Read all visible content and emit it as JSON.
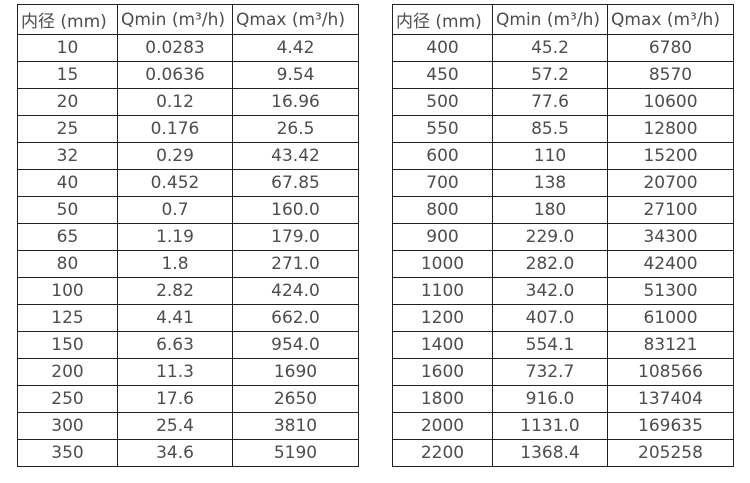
{
  "colors": {
    "background": "#ffffff",
    "text": "#4d4d4d",
    "border": "#222222"
  },
  "left_table": {
    "headers": [
      "内径 (mm)",
      "Qmin (m³/h)",
      "Qmax (m³/h)"
    ],
    "rows": [
      [
        "10",
        "0.0283",
        "4.42"
      ],
      [
        "15",
        "0.0636",
        "9.54"
      ],
      [
        "20",
        "0.12",
        "16.96"
      ],
      [
        "25",
        "0.176",
        "26.5"
      ],
      [
        "32",
        "0.29",
        "43.42"
      ],
      [
        "40",
        "0.452",
        "67.85"
      ],
      [
        "50",
        "0.7",
        "160.0"
      ],
      [
        "65",
        "1.19",
        "179.0"
      ],
      [
        "80",
        "1.8",
        "271.0"
      ],
      [
        "100",
        "2.82",
        "424.0"
      ],
      [
        "125",
        "4.41",
        "662.0"
      ],
      [
        "150",
        "6.63",
        "954.0"
      ],
      [
        "200",
        "11.3",
        "1690"
      ],
      [
        "250",
        "17.6",
        "2650"
      ],
      [
        "300",
        "25.4",
        "3810"
      ],
      [
        "350",
        "34.6",
        "5190"
      ]
    ]
  },
  "right_table": {
    "headers": [
      "内径 (mm)",
      "Qmin (m³/h)",
      "Qmax (m³/h)"
    ],
    "rows": [
      [
        "400",
        "45.2",
        "6780"
      ],
      [
        "450",
        "57.2",
        "8570"
      ],
      [
        "500",
        "77.6",
        "10600"
      ],
      [
        "550",
        "85.5",
        "12800"
      ],
      [
        "600",
        "110",
        "15200"
      ],
      [
        "700",
        "138",
        "20700"
      ],
      [
        "800",
        "180",
        "27100"
      ],
      [
        "900",
        "229.0",
        "34300"
      ],
      [
        "1000",
        "282.0",
        "42400"
      ],
      [
        "1100",
        "342.0",
        "51300"
      ],
      [
        "1200",
        "407.0",
        "61000"
      ],
      [
        "1400",
        "554.1",
        "83121"
      ],
      [
        "1600",
        "732.7",
        "108566"
      ],
      [
        "1800",
        "916.0",
        "137404"
      ],
      [
        "2000",
        "1131.0",
        "169635"
      ],
      [
        "2200",
        "1368.4",
        "205258"
      ]
    ]
  }
}
